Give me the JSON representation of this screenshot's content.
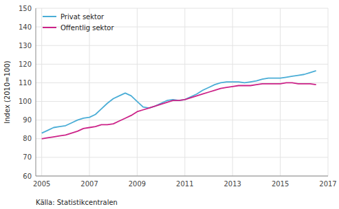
{
  "chart_data": {
    "type": "line",
    "ylabel": "Index (2010=100)",
    "source": "Källa: Statistikcentralen",
    "xlim": [
      2004.75,
      2017.0
    ],
    "ylim": [
      60,
      150
    ],
    "xticks": [
      2005,
      2007,
      2009,
      2011,
      2013,
      2015,
      2017
    ],
    "yticks": [
      60,
      70,
      80,
      90,
      100,
      110,
      120,
      130,
      140,
      150
    ],
    "grid": true,
    "legend": "upper left",
    "x": [
      2005.0,
      2005.25,
      2005.5,
      2005.75,
      2006.0,
      2006.25,
      2006.5,
      2006.75,
      2007.0,
      2007.25,
      2007.5,
      2007.75,
      2008.0,
      2008.25,
      2008.5,
      2008.75,
      2009.0,
      2009.25,
      2009.5,
      2009.75,
      2010.0,
      2010.25,
      2010.5,
      2010.75,
      2011.0,
      2011.25,
      2011.5,
      2011.75,
      2012.0,
      2012.25,
      2012.5,
      2012.75,
      2013.0,
      2013.25,
      2013.5,
      2013.75,
      2014.0,
      2014.25,
      2014.5,
      2014.75,
      2015.0,
      2015.25,
      2015.5,
      2015.75,
      2016.0,
      2016.25,
      2016.5
    ],
    "series": [
      {
        "name": "Privat sektor",
        "color": "#4aadd6",
        "values": [
          83.0,
          84.5,
          86.0,
          86.5,
          87.0,
          88.5,
          90.0,
          91.0,
          91.5,
          93.0,
          96.0,
          99.0,
          101.5,
          103.0,
          104.5,
          103.0,
          100.0,
          97.0,
          96.5,
          97.5,
          99.0,
          100.5,
          101.0,
          100.5,
          101.0,
          102.5,
          104.0,
          106.0,
          107.5,
          109.0,
          110.0,
          110.5,
          110.5,
          110.5,
          110.0,
          110.5,
          111.0,
          112.0,
          112.5,
          112.5,
          112.5,
          113.0,
          113.5,
          114.0,
          114.5,
          115.5,
          116.5
        ]
      },
      {
        "name": "Offentlig sektor",
        "color": "#cc2288",
        "values": [
          80.0,
          80.5,
          81.0,
          81.5,
          82.0,
          83.0,
          84.0,
          85.5,
          86.0,
          86.5,
          87.5,
          87.5,
          88.0,
          89.5,
          91.0,
          92.5,
          94.5,
          95.5,
          96.5,
          97.5,
          98.5,
          99.5,
          100.5,
          100.5,
          101.0,
          102.0,
          103.0,
          104.0,
          105.0,
          106.0,
          107.0,
          107.5,
          108.0,
          108.5,
          108.5,
          108.5,
          109.0,
          109.5,
          109.5,
          109.5,
          109.5,
          110.0,
          110.0,
          109.5,
          109.5,
          109.5,
          109.0
        ]
      }
    ]
  }
}
